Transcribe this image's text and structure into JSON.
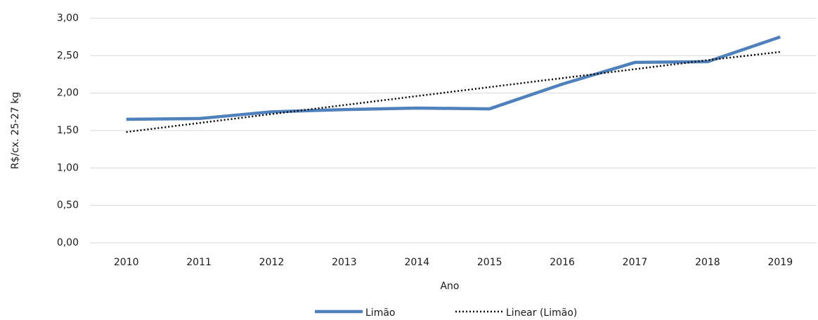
{
  "chart_data": {
    "type": "line",
    "x_label": "Ano",
    "y_label": "R$/cx. 25-27 kg",
    "categories": [
      "2010",
      "2011",
      "2012",
      "2013",
      "2014",
      "2015",
      "2016",
      "2017",
      "2018",
      "2019"
    ],
    "series": [
      {
        "name": "Limão",
        "color": "#4f81bd",
        "style": "solid",
        "values": [
          1.65,
          1.66,
          1.75,
          1.78,
          1.8,
          1.79,
          2.12,
          2.41,
          2.42,
          2.75
        ]
      },
      {
        "name": "Linear (Limão)",
        "color": "#000000",
        "style": "dotted",
        "values": [
          1.48,
          1.6,
          1.72,
          1.84,
          1.96,
          2.08,
          2.2,
          2.32,
          2.44,
          2.55
        ]
      }
    ],
    "ylim": [
      0,
      3
    ],
    "yticks": [
      {
        "value": 0,
        "label": "0,00"
      },
      {
        "value": 0.5,
        "label": "0,50"
      },
      {
        "value": 1,
        "label": "1,00"
      },
      {
        "value": 1.5,
        "label": "1,50"
      },
      {
        "value": 2,
        "label": "2,00"
      },
      {
        "value": 2.5,
        "label": "2,50"
      },
      {
        "value": 3,
        "label": "3,00"
      }
    ],
    "grid": true,
    "legend": "bottom"
  }
}
